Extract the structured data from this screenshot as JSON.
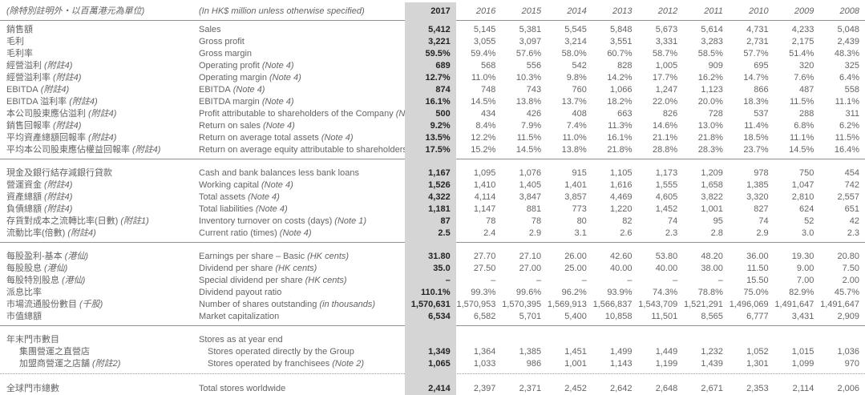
{
  "meta": {
    "note_zh": "(除特別註明外・以百萬港元為單位)",
    "note_en": "(In HK$ million unless otherwise specified)"
  },
  "years": [
    "2017",
    "2016",
    "2015",
    "2014",
    "2013",
    "2012",
    "2011",
    "2010",
    "2009",
    "2008"
  ],
  "highlight_year": "2017",
  "colors": {
    "highlight_column_bg": "#d5d5d5",
    "body_text": "#636466",
    "highlight_text": "#232224",
    "rule": "#8f9092"
  },
  "sections": [
    {
      "name": "profitability",
      "divider_after": "solid",
      "rows": [
        {
          "zh": "銷售額",
          "zh_note": "",
          "en": "Sales",
          "en_note": "",
          "indent": false,
          "values": [
            "5,412",
            "5,145",
            "5,381",
            "5,545",
            "5,848",
            "5,673",
            "5,614",
            "4,731",
            "4,233",
            "5,048"
          ]
        },
        {
          "zh": "毛利",
          "zh_note": "",
          "en": "Gross profit",
          "en_note": "",
          "indent": false,
          "values": [
            "3,221",
            "3,055",
            "3,097",
            "3,214",
            "3,551",
            "3,331",
            "3,283",
            "2,731",
            "2,175",
            "2,439"
          ]
        },
        {
          "zh": "毛利率",
          "zh_note": "",
          "en": "Gross margin",
          "en_note": "",
          "indent": false,
          "values": [
            "59.5%",
            "59.4%",
            "57.6%",
            "58.0%",
            "60.7%",
            "58.7%",
            "58.5%",
            "57.7%",
            "51.4%",
            "48.3%"
          ]
        },
        {
          "zh": "經營溢利",
          "zh_note": "(附註4)",
          "en": "Operating profit",
          "en_note": "(Note 4)",
          "indent": false,
          "values": [
            "689",
            "568",
            "556",
            "542",
            "828",
            "1,005",
            "909",
            "695",
            "320",
            "325"
          ]
        },
        {
          "zh": "經營溢利率",
          "zh_note": "(附註4)",
          "en": "Operating margin",
          "en_note": "(Note 4)",
          "indent": false,
          "values": [
            "12.7%",
            "11.0%",
            "10.3%",
            "9.8%",
            "14.2%",
            "17.7%",
            "16.2%",
            "14.7%",
            "7.6%",
            "6.4%"
          ]
        },
        {
          "zh": "EBITDA",
          "zh_note": "(附註4)",
          "en": "EBITDA",
          "en_note": "(Note 4)",
          "indent": false,
          "values": [
            "874",
            "748",
            "743",
            "760",
            "1,066",
            "1,247",
            "1,123",
            "866",
            "487",
            "558"
          ]
        },
        {
          "zh": "EBITDA 溢利率",
          "zh_note": "(附註4)",
          "en": "EBITDA margin",
          "en_note": "(Note 4)",
          "indent": false,
          "values": [
            "16.1%",
            "14.5%",
            "13.8%",
            "13.7%",
            "18.2%",
            "22.0%",
            "20.0%",
            "18.3%",
            "11.5%",
            "11.1%"
          ]
        },
        {
          "zh": "本公司股東應佔溢利",
          "zh_note": "(附註4)",
          "en": "Profit attributable to shareholders of the Company",
          "en_note": "(Note 4)",
          "indent": false,
          "values": [
            "500",
            "434",
            "426",
            "408",
            "663",
            "826",
            "728",
            "537",
            "288",
            "311"
          ]
        },
        {
          "zh": "銷售回報率",
          "zh_note": "(附註4)",
          "en": "Return on sales",
          "en_note": "(Note 4)",
          "indent": false,
          "values": [
            "9.2%",
            "8.4%",
            "7.9%",
            "7.4%",
            "11.3%",
            "14.6%",
            "13.0%",
            "11.4%",
            "6.8%",
            "6.2%"
          ]
        },
        {
          "zh": "平均資產總額回報率",
          "zh_note": "(附註4)",
          "en": "Return on average total assets",
          "en_note": "(Note 4)",
          "indent": false,
          "values": [
            "13.5%",
            "12.2%",
            "11.5%",
            "11.0%",
            "16.1%",
            "21.1%",
            "21.8%",
            "18.5%",
            "11.1%",
            "11.5%"
          ]
        },
        {
          "zh": "平均本公司股東應佔權益回報率",
          "zh_note": "(附註4)",
          "en": "Return on average equity attributable to shareholders",
          "en_note": "(Note 4)",
          "indent": false,
          "values": [
            "17.5%",
            "15.2%",
            "14.5%",
            "13.8%",
            "21.8%",
            "28.8%",
            "28.3%",
            "23.7%",
            "14.5%",
            "16.4%"
          ]
        }
      ]
    },
    {
      "name": "financial_position",
      "divider_after": "solid",
      "rows": [
        {
          "zh": "現金及銀行結存減銀行貸款",
          "zh_note": "",
          "en": "Cash and bank balances less bank loans",
          "en_note": "",
          "indent": false,
          "values": [
            "1,167",
            "1,095",
            "1,076",
            "915",
            "1,105",
            "1,173",
            "1,209",
            "978",
            "750",
            "454"
          ]
        },
        {
          "zh": "營運資金",
          "zh_note": "(附註4)",
          "en": "Working capital",
          "en_note": "(Note 4)",
          "indent": false,
          "values": [
            "1,526",
            "1,410",
            "1,405",
            "1,401",
            "1,616",
            "1,555",
            "1,658",
            "1,385",
            "1,047",
            "742"
          ]
        },
        {
          "zh": "資產總額",
          "zh_note": "(附註4)",
          "en": "Total assets",
          "en_note": "(Note 4)",
          "indent": false,
          "values": [
            "4,322",
            "4,114",
            "3,847",
            "3,857",
            "4,469",
            "4,605",
            "3,822",
            "3,320",
            "2,810",
            "2,557"
          ]
        },
        {
          "zh": "負債總額",
          "zh_note": "(附註4)",
          "en": "Total liabilities",
          "en_note": "(Note 4)",
          "indent": false,
          "values": [
            "1,181",
            "1,147",
            "881",
            "773",
            "1,220",
            "1,452",
            "1,001",
            "827",
            "624",
            "651"
          ]
        },
        {
          "zh": "存貨對成本之流轉比率(日數)",
          "zh_note": "(附註1)",
          "en": "Inventory turnover on costs (days)",
          "en_note": "(Note 1)",
          "indent": false,
          "values": [
            "87",
            "78",
            "78",
            "80",
            "82",
            "74",
            "95",
            "74",
            "52",
            "42"
          ]
        },
        {
          "zh": "流動比率(倍數)",
          "zh_note": "(附註4)",
          "en": "Current ratio (times)",
          "en_note": "(Note 4)",
          "indent": false,
          "values": [
            "2.5",
            "2.4",
            "2.9",
            "3.1",
            "2.6",
            "2.3",
            "2.8",
            "2.9",
            "3.0",
            "2.3"
          ]
        }
      ]
    },
    {
      "name": "per_share",
      "divider_after": "solid",
      "rows": [
        {
          "zh": "每股盈利-基本",
          "zh_note": "(港仙)",
          "en": "Earnings per share – Basic",
          "en_note": "(HK cents)",
          "indent": false,
          "values": [
            "31.80",
            "27.70",
            "27.10",
            "26.00",
            "42.60",
            "53.80",
            "48.20",
            "36.00",
            "19.30",
            "20.80"
          ]
        },
        {
          "zh": "每股股息",
          "zh_note": "(港仙)",
          "en": "Dividend per share",
          "en_note": "(HK cents)",
          "indent": false,
          "values": [
            "35.0",
            "27.50",
            "27.00",
            "25.00",
            "40.00",
            "40.00",
            "38.00",
            "11.50",
            "9.00",
            "7.50"
          ]
        },
        {
          "zh": "每股特別股息",
          "zh_note": "(港仙)",
          "en": "Special dividend per share",
          "en_note": "(HK cents)",
          "indent": false,
          "values": [
            "–",
            "–",
            "–",
            "–",
            "–",
            "–",
            "–",
            "15.50",
            "7.00",
            "2.00"
          ]
        },
        {
          "zh": "派息比率",
          "zh_note": "",
          "en": "Dividend payout ratio",
          "en_note": "",
          "indent": false,
          "values": [
            "110.1%",
            "99.3%",
            "99.6%",
            "96.2%",
            "93.9%",
            "74.3%",
            "78.8%",
            "75.0%",
            "82.9%",
            "45.7%"
          ]
        },
        {
          "zh": "市場流通股份數目",
          "zh_note": "(千股)",
          "en": "Number of shares outstanding",
          "en_note": "(in thousands)",
          "indent": false,
          "values": [
            "1,570,631",
            "1,570,953",
            "1,570,395",
            "1,569,913",
            "1,566,837",
            "1,543,709",
            "1,521,291",
            "1,496,069",
            "1,491,647",
            "1,491,647"
          ]
        },
        {
          "zh": "市值總額",
          "zh_note": "",
          "en": "Market capitalization",
          "en_note": "",
          "indent": false,
          "values": [
            "6,534",
            "6,582",
            "5,701",
            "5,400",
            "10,858",
            "11,501",
            "8,565",
            "6,777",
            "3,431",
            "2,909"
          ]
        }
      ]
    },
    {
      "name": "stores",
      "divider_after": "dotted",
      "rows": [
        {
          "zh": "年末門市數目",
          "zh_note": "",
          "en": "Stores as at year end",
          "en_note": "",
          "indent": false,
          "values": []
        },
        {
          "zh": "集團營運之直營店",
          "zh_note": "",
          "en": "Stores operated directly by the Group",
          "en_note": "",
          "indent": true,
          "values": [
            "1,349",
            "1,364",
            "1,385",
            "1,451",
            "1,499",
            "1,449",
            "1,232",
            "1,052",
            "1,015",
            "1,036"
          ]
        },
        {
          "zh": "加盟商營運之店舖",
          "zh_note": "(附註2)",
          "en": "Stores operated by franchisees",
          "en_note": "(Note 2)",
          "indent": true,
          "values": [
            "1,065",
            "1,033",
            "986",
            "1,001",
            "1,143",
            "1,199",
            "1,439",
            "1,301",
            "1,099",
            "970"
          ]
        }
      ]
    },
    {
      "name": "total_stores",
      "divider_after": "none",
      "rows": [
        {
          "zh": "全球門市總數",
          "zh_note": "",
          "en": "Total stores worldwide",
          "en_note": "",
          "indent": false,
          "values": [
            "2,414",
            "2,397",
            "2,371",
            "2,452",
            "2,642",
            "2,648",
            "2,671",
            "2,353",
            "2,114",
            "2,006"
          ]
        }
      ]
    }
  ]
}
